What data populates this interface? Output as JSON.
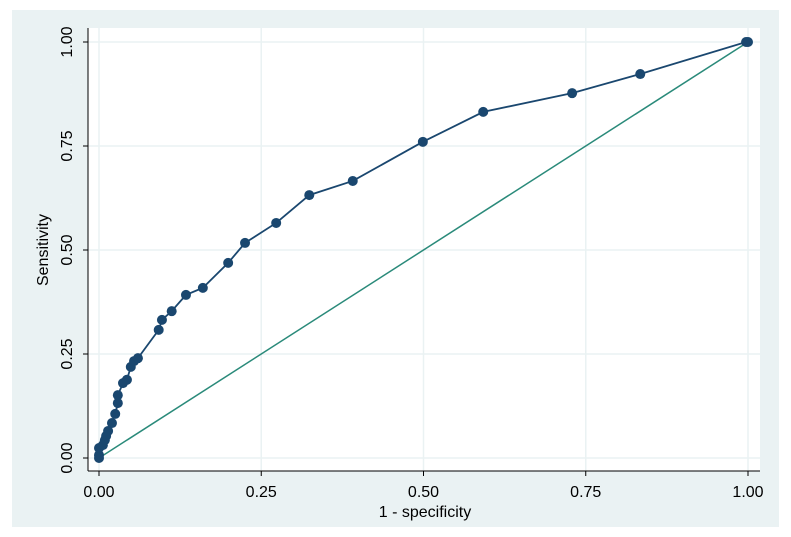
{
  "chart_data": {
    "type": "scatter",
    "x_label": "1 - specificity",
    "y_label": "Sensitivity",
    "xlim": [
      0,
      1
    ],
    "ylim": [
      0,
      1
    ],
    "xticks": [
      {
        "value": 0,
        "label": "0.00"
      },
      {
        "value": 0.25,
        "label": "0.25"
      },
      {
        "value": 0.5,
        "label": "0.50"
      },
      {
        "value": 0.75,
        "label": "0.75"
      },
      {
        "value": 1,
        "label": "1.00"
      }
    ],
    "yticks": [
      {
        "value": 0,
        "label": "0.00"
      },
      {
        "value": 0.25,
        "label": "0.25"
      },
      {
        "value": 0.5,
        "label": "0.50"
      },
      {
        "value": 0.75,
        "label": "0.75"
      },
      {
        "value": 1,
        "label": "1.00"
      }
    ],
    "grid": true,
    "color": "#1a476f",
    "x": [
      0,
      0,
      0,
      0.006,
      0.009,
      0.011,
      0.014,
      0.02,
      0.025,
      0.029,
      0.029,
      0.037,
      0.043,
      0.049,
      0.054,
      0.06,
      0.092,
      0.097,
      0.112,
      0.134,
      0.16,
      0.199,
      0.225,
      0.273,
      0.324,
      0.391,
      0.499,
      0.592,
      0.729,
      0.834,
      0.997,
      1
    ],
    "values": [
      0,
      0.007,
      0.024,
      0.031,
      0.043,
      0.053,
      0.065,
      0.084,
      0.106,
      0.132,
      0.151,
      0.18,
      0.188,
      0.219,
      0.233,
      0.24,
      0.308,
      0.332,
      0.353,
      0.392,
      0.409,
      0.469,
      0.517,
      0.565,
      0.632,
      0.666,
      0.76,
      0.832,
      0.877,
      0.923,
      1,
      1
    ],
    "reference_x": [
      0,
      1
    ],
    "reference_y": [
      0,
      1
    ],
    "reference_color": "#2a8a7a"
  }
}
